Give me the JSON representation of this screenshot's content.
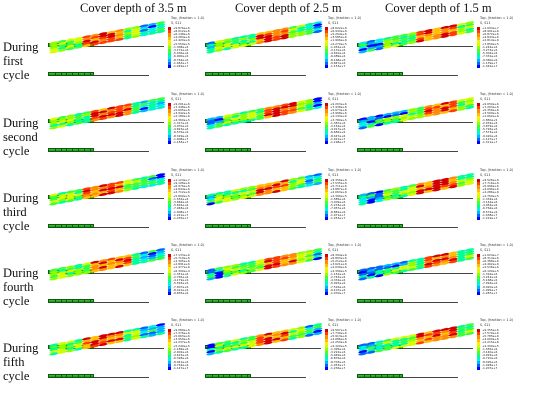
{
  "columns": [
    "Cover depth of 3.5 m",
    "Cover depth of 2.5 m",
    "Cover depth of 1.5 m"
  ],
  "rows": [
    {
      "label": "During first cycle"
    },
    {
      "label": "During second cycle"
    },
    {
      "label": "During third cycle"
    },
    {
      "label": "During fourth cycle"
    },
    {
      "label": "During fifth cycle"
    }
  ],
  "panel_header": {
    "line1": "Top, (fraction = 1.0)",
    "line2": "S, S11"
  },
  "legend_colors": [
    "#d40000",
    "#ff3c00",
    "#ff8c00",
    "#ffbe00",
    "#ffee00",
    "#d2ff00",
    "#8cff00",
    "#3cff3c",
    "#00ff96",
    "#00f0e6",
    "#00b4ff",
    "#0064ff",
    "#0000ff"
  ],
  "legend_values": {
    "r1c1": [
      "+9.876e+6",
      "+8.012e+6",
      "+6.148e+6",
      "+4.284e+6",
      "+2.420e+6",
      "+5.559e+5",
      "-1.308e+6",
      "-3.172e+6",
      "-5.036e+6",
      "-6.900e+6",
      "-8.764e+6",
      "-1.063e+7",
      "-1.249e+7"
    ],
    "r1c2": [
      "+8.622e+6",
      "+6.943e+6",
      "+5.264e+6",
      "+3.585e+6",
      "+1.906e+6",
      "+2.270e+5",
      "-1.452e+6",
      "-3.131e+6",
      "-4.810e+6",
      "-6.489e+6",
      "-8.168e+6",
      "-9.847e+6",
      "-1.153e+7"
    ],
    "r1c3": [
      "+1.093e+7",
      "+8.901e+6",
      "+6.872e+6",
      "+4.843e+6",
      "+2.814e+6",
      "+7.850e+5",
      "-1.244e+6",
      "-3.273e+6",
      "-5.302e+6",
      "-7.331e+6",
      "-9.360e+6",
      "-1.139e+7",
      "-1.342e+7"
    ],
    "r2c1": [
      "+9.201e+6",
      "+7.448e+6",
      "+5.695e+6",
      "+3.942e+6",
      "+2.189e+6",
      "+4.360e+5",
      "-1.317e+6",
      "-3.070e+6",
      "-4.823e+6",
      "-6.576e+6",
      "-8.329e+6",
      "-1.008e+7",
      "-1.183e+7"
    ],
    "r2c2": [
      "+9.203e+6",
      "+7.438e+6",
      "+5.673e+6",
      "+3.908e+6",
      "+2.143e+6",
      "+3.780e+5",
      "-1.387e+6",
      "-3.152e+6",
      "-4.917e+6",
      "-6.682e+6",
      "-8.447e+6",
      "-1.021e+7",
      "-1.198e+7"
    ],
    "r2c3": [
      "+9.050e+6",
      "+7.203e+6",
      "+5.356e+6",
      "+3.509e+6",
      "+1.662e+6",
      "-1.850e+5",
      "-2.032e+6",
      "-3.879e+6",
      "-5.726e+6",
      "-7.573e+6",
      "-9.420e+6",
      "-1.127e+7",
      "-1.311e+7"
    ],
    "r3c1": [
      "+1.124e+7",
      "+9.108e+6",
      "+6.976e+6",
      "+4.844e+6",
      "+2.712e+6",
      "+5.800e+5",
      "-1.552e+6",
      "-3.684e+6",
      "-5.816e+6",
      "-7.948e+6",
      "-1.008e+7",
      "-1.221e+7",
      "-1.435e+7"
    ],
    "r3c2": [
      "+9.359e+6",
      "+7.535e+6",
      "+5.711e+6",
      "+3.887e+6",
      "+2.063e+6",
      "+2.390e+5",
      "-1.585e+6",
      "-3.409e+6",
      "-5.233e+6",
      "-7.057e+6",
      "-8.881e+6",
      "-1.071e+7",
      "-1.253e+7"
    ],
    "r3c3": [
      "+9.526e+6",
      "+7.716e+6",
      "+5.906e+6",
      "+4.096e+6",
      "+2.286e+6",
      "+4.760e+5",
      "-1.334e+6",
      "-3.144e+6",
      "-4.954e+6",
      "-6.764e+6",
      "-8.574e+6",
      "-1.038e+7",
      "-1.219e+7"
    ],
    "r4c1": [
      "+7.133e+6",
      "+5.719e+6",
      "+4.305e+6",
      "+2.891e+6",
      "+1.477e+6",
      "+6.300e+4",
      "-1.351e+6",
      "-2.765e+6",
      "-4.179e+6",
      "-5.593e+6",
      "-7.007e+6",
      "-8.421e+6",
      "-9.835e+6"
    ],
    "r4c2": [
      "+8.394e+6",
      "+6.803e+6",
      "+5.212e+6",
      "+3.621e+6",
      "+2.030e+6",
      "+4.390e+5",
      "-1.152e+6",
      "-2.743e+6",
      "-4.334e+6",
      "-5.925e+6",
      "-7.516e+6",
      "-9.107e+6",
      "-1.070e+7"
    ],
    "r4c3": [
      "+1.024e+7",
      "+8.314e+6",
      "+6.388e+6",
      "+4.462e+6",
      "+2.536e+6",
      "+6.100e+5",
      "-1.316e+6",
      "-3.242e+6",
      "-5.168e+6",
      "-7.094e+6",
      "-9.020e+6",
      "-1.095e+7",
      "-1.287e+7"
    ],
    "r5c1": [
      "+9.089e+6",
      "+7.376e+6",
      "+5.663e+6",
      "+3.950e+6",
      "+2.237e+6",
      "+5.240e+5",
      "-1.189e+6",
      "-2.902e+6",
      "-4.615e+6",
      "-6.328e+6",
      "-8.041e+6",
      "-9.754e+6",
      "-1.147e+7"
    ],
    "r5c2": [
      "+9.567e+6",
      "+7.740e+6",
      "+5.913e+6",
      "+4.086e+6",
      "+2.259e+6",
      "+4.320e+5",
      "-1.395e+6",
      "-3.222e+6",
      "-5.049e+6",
      "-6.876e+6",
      "-8.703e+6",
      "-1.053e+7",
      "-1.236e+7"
    ],
    "r5c3": [
      "+9.355e+6",
      "+7.570e+6",
      "+5.785e+6",
      "+4.000e+6",
      "+2.215e+6",
      "+4.300e+5",
      "-1.355e+6",
      "-3.140e+6",
      "-4.925e+6",
      "-6.710e+6",
      "-8.495e+6",
      "-1.028e+7",
      "-1.207e+7"
    ]
  }
}
